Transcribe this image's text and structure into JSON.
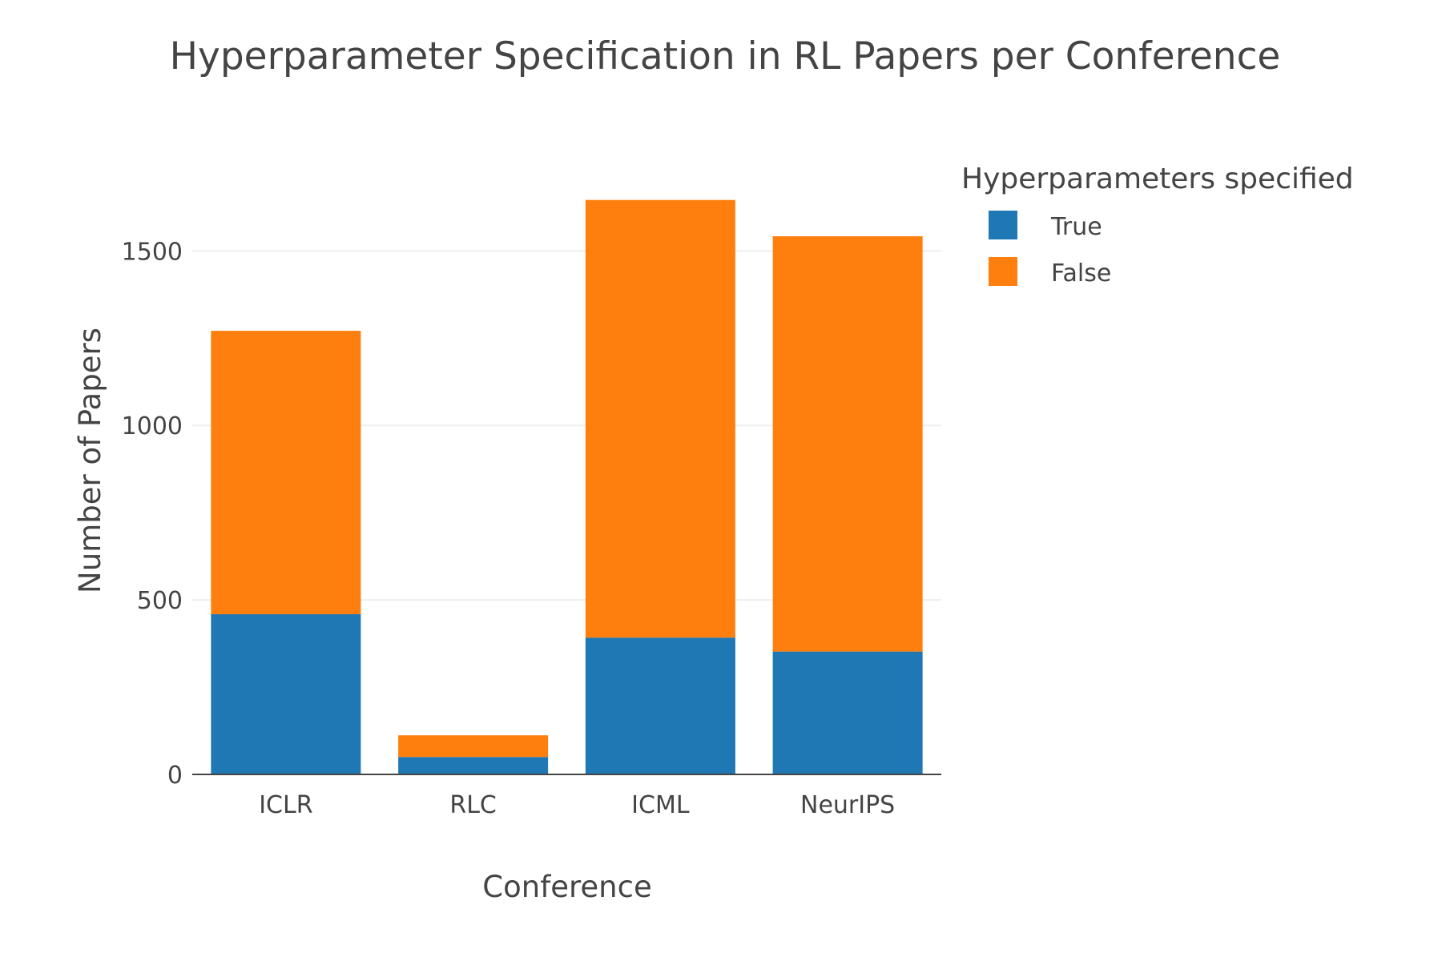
{
  "chart_data": {
    "type": "bar",
    "barmode": "stack",
    "title": "Hyperparameter Specification in RL Papers per Conference",
    "xlabel": "Conference",
    "ylabel": "Number of Papers",
    "categories": [
      "ICLR",
      "RLC",
      "ICML",
      "NeurIPS"
    ],
    "series": [
      {
        "name": "True",
        "color": "#1f77b4",
        "values": [
          459,
          50,
          392,
          352
        ]
      },
      {
        "name": "False",
        "color": "#ff7f0e",
        "values": [
          812,
          62,
          1254,
          1190
        ]
      }
    ],
    "ylim": [
      0,
      1760
    ],
    "yticks": [
      0,
      500,
      1000,
      1500
    ],
    "ytick_labels": [
      "0",
      "500",
      "1000",
      "1500"
    ],
    "grid": true,
    "legend": {
      "title": "Hyperparameters specified",
      "position": "top-right",
      "items": [
        "True",
        "False"
      ]
    }
  }
}
